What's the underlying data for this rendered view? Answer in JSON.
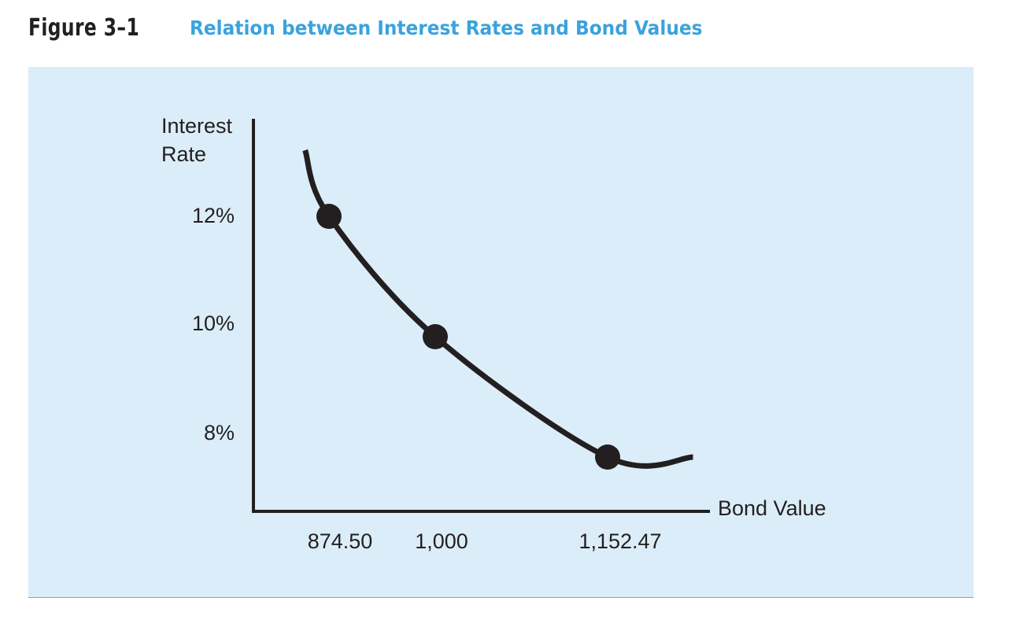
{
  "figure": {
    "number": "Figure 3–1",
    "title": "Relation between Interest Rates and Bond Values",
    "accent_color": "#3aa3dc",
    "panel_color": "#dbedf8"
  },
  "chart_data": {
    "type": "line",
    "title": "Relation between Interest Rates and Bond Values",
    "xlabel": "Bond Value",
    "ylabel_lines": [
      "Interest",
      "Rate"
    ],
    "x_ticks": [
      "874.50",
      "1,000",
      "1,152.47"
    ],
    "y_ticks": [
      "12%",
      "10%",
      "8%"
    ],
    "points": [
      {
        "x": 874.5,
        "y": 12
      },
      {
        "x": 1000,
        "y": 10
      },
      {
        "x": 1152.47,
        "y": 8
      }
    ],
    "curve": [
      {
        "x": 846.3,
        "y": 13.1
      },
      {
        "x": 874.5,
        "y": 12
      },
      {
        "x": 1000,
        "y": 10
      },
      {
        "x": 1152.47,
        "y": 8
      },
      {
        "x": 1228,
        "y": 8
      }
    ],
    "grid": false,
    "legend": "none"
  }
}
